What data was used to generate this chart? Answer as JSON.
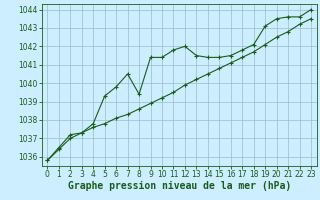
{
  "bg_color": "#cceeff",
  "grid_color": "#99bbcc",
  "line_color": "#1a5c1a",
  "x_values": [
    0,
    1,
    2,
    3,
    4,
    5,
    6,
    7,
    8,
    9,
    10,
    11,
    12,
    13,
    14,
    15,
    16,
    17,
    18,
    19,
    20,
    21,
    22,
    23
  ],
  "y_series1": [
    1035.8,
    1036.5,
    1037.2,
    1037.3,
    1037.8,
    1039.3,
    1039.8,
    1040.5,
    1039.4,
    1041.4,
    1041.4,
    1041.8,
    1042.0,
    1041.5,
    1041.4,
    1041.4,
    1041.5,
    1041.8,
    1042.1,
    1043.1,
    1043.5,
    1043.6,
    1043.6,
    1044.0
  ],
  "y_series2": [
    1035.8,
    1036.4,
    1037.0,
    1037.3,
    1037.6,
    1037.8,
    1038.1,
    1038.3,
    1038.6,
    1038.9,
    1039.2,
    1039.5,
    1039.9,
    1040.2,
    1040.5,
    1040.8,
    1041.1,
    1041.4,
    1041.7,
    1042.1,
    1042.5,
    1042.8,
    1043.2,
    1043.5
  ],
  "ylim": [
    1035.5,
    1044.3
  ],
  "yticks": [
    1036,
    1037,
    1038,
    1039,
    1040,
    1041,
    1042,
    1043,
    1044
  ],
  "xlim": [
    -0.5,
    23.5
  ],
  "xticks": [
    0,
    1,
    2,
    3,
    4,
    5,
    6,
    7,
    8,
    9,
    10,
    11,
    12,
    13,
    14,
    15,
    16,
    17,
    18,
    19,
    20,
    21,
    22,
    23
  ],
  "xlabel": "Graphe pression niveau de la mer (hPa)",
  "tick_fontsize": 5.5,
  "label_fontsize": 7.0,
  "linewidth": 0.8,
  "markersize": 3.5
}
